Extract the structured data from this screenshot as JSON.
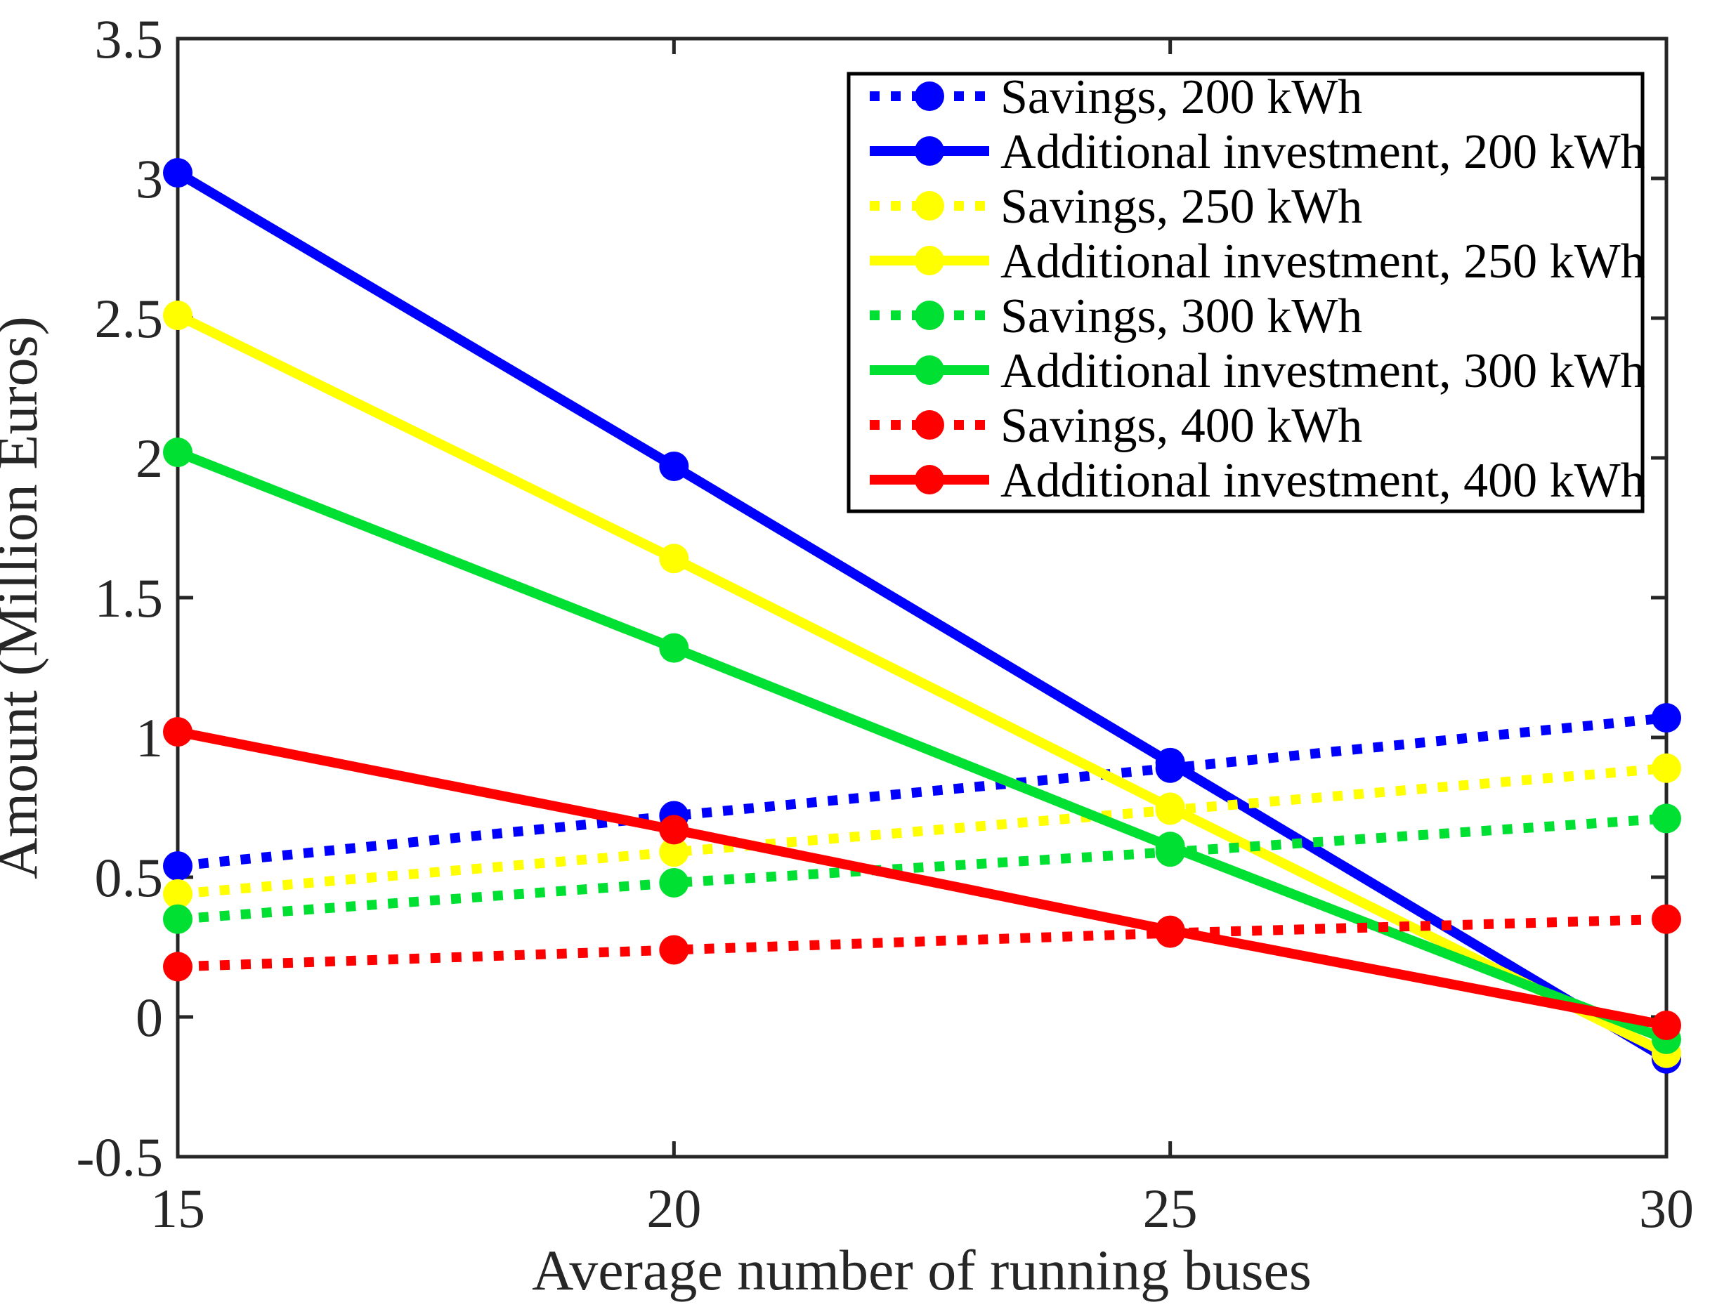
{
  "figure_title": "",
  "colors": {
    "background": "#ffffff",
    "axis": "#262626",
    "tick_text": "#262626",
    "legend_border": "#000000",
    "blue": "#0000ff",
    "yellow": "#ffff00",
    "green": "#00e032",
    "red": "#ff0000"
  },
  "chart_data": {
    "type": "line",
    "x": [
      15,
      20,
      25,
      30
    ],
    "xlabel": "Average number of running buses",
    "ylabel": "Amount (Million Euros)",
    "xlim": [
      15,
      30
    ],
    "ylim": [
      -0.5,
      3.5
    ],
    "xticks": [
      "15",
      "20",
      "25",
      "30"
    ],
    "yticks": [
      "-0.5",
      "0",
      "0.5",
      "1",
      "1.5",
      "2",
      "2.5",
      "3",
      "3.5"
    ],
    "grid": false,
    "legend_position": "top-right-inside",
    "series": [
      {
        "name": "Savings, 200 kWh",
        "color": "#0000ff",
        "style": "dotted",
        "marker": "circle",
        "values": [
          0.54,
          0.72,
          0.89,
          1.07
        ]
      },
      {
        "name": "Additional investment, 200 kWh",
        "color": "#0000ff",
        "style": "solid",
        "marker": "circle",
        "values": [
          3.02,
          1.97,
          0.91,
          -0.15
        ]
      },
      {
        "name": "Savings, 250 kWh",
        "color": "#ffff00",
        "style": "dotted",
        "marker": "circle",
        "values": [
          0.44,
          0.59,
          0.74,
          0.89
        ]
      },
      {
        "name": "Additional investment, 250 kWh",
        "color": "#ffff00",
        "style": "solid",
        "marker": "circle",
        "values": [
          2.51,
          1.64,
          0.75,
          -0.13
        ]
      },
      {
        "name": "Savings, 300 kWh",
        "color": "#00e032",
        "style": "dotted",
        "marker": "circle",
        "values": [
          0.35,
          0.48,
          0.59,
          0.71
        ]
      },
      {
        "name": "Additional investment, 300 kWh",
        "color": "#00e032",
        "style": "solid",
        "marker": "circle",
        "values": [
          2.02,
          1.32,
          0.61,
          -0.08
        ]
      },
      {
        "name": "Savings, 400 kWh",
        "color": "#ff0000",
        "style": "dotted",
        "marker": "circle",
        "values": [
          0.18,
          0.24,
          0.3,
          0.35
        ]
      },
      {
        "name": "Additional investment, 400 kWh",
        "color": "#ff0000",
        "style": "solid",
        "marker": "circle",
        "values": [
          1.02,
          0.67,
          0.31,
          -0.03
        ]
      }
    ]
  }
}
